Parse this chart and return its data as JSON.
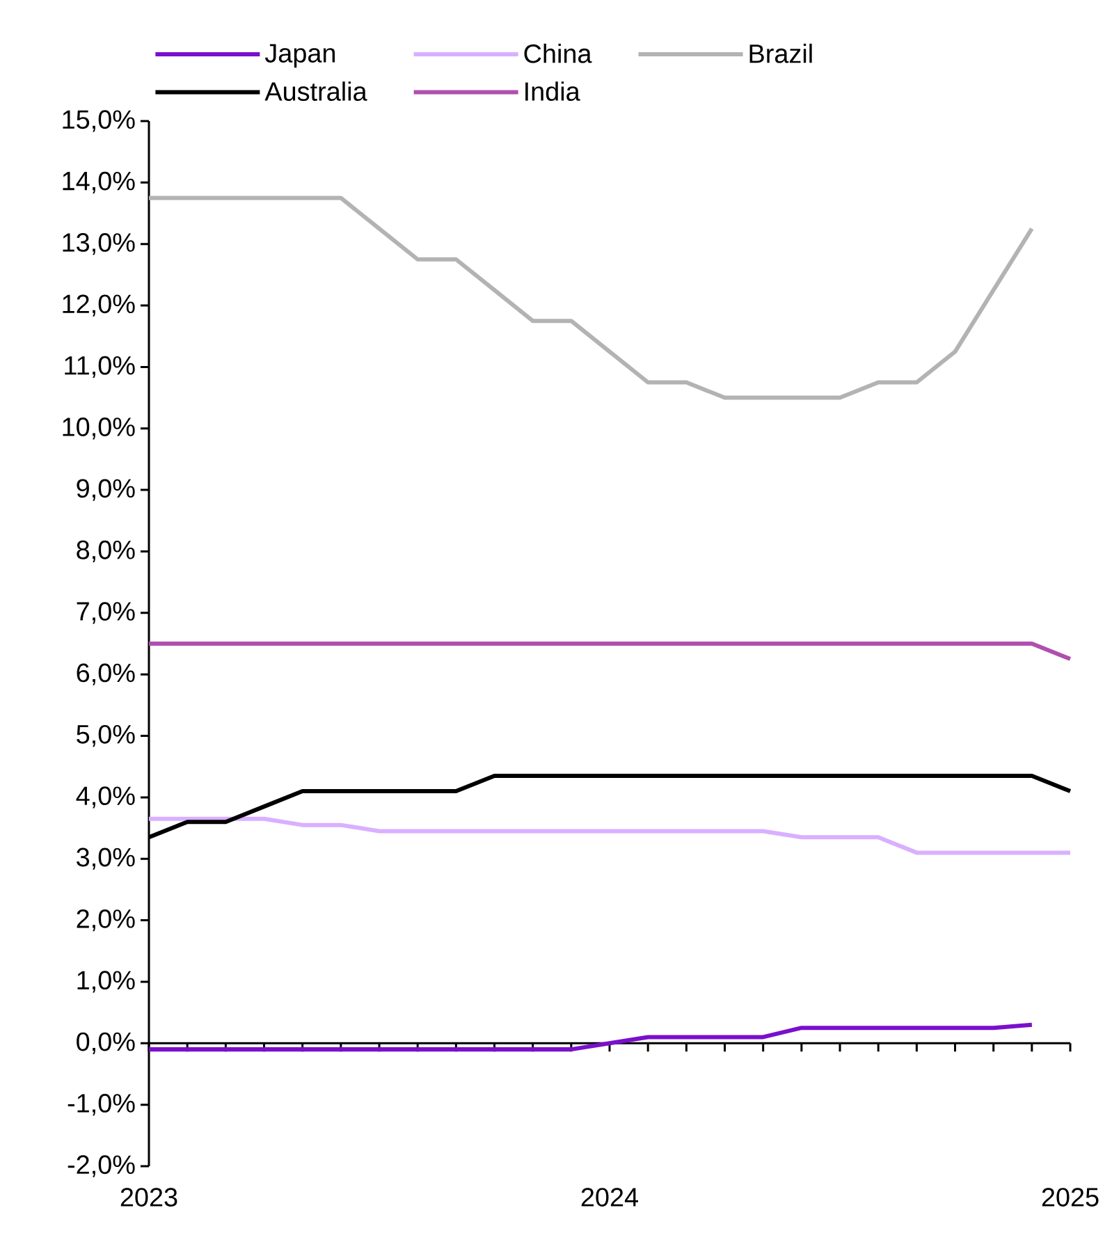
{
  "chart_data": {
    "type": "line",
    "legend": "top",
    "marker": "none",
    "line_style": "solid",
    "x": [
      "2023-01",
      "2023-02",
      "2023-03",
      "2023-04",
      "2023-05",
      "2023-06",
      "2023-07",
      "2023-08",
      "2023-09",
      "2023-10",
      "2023-11",
      "2023-12",
      "2024-01",
      "2024-02",
      "2024-03",
      "2024-04",
      "2024-05",
      "2024-06",
      "2024-07",
      "2024-08",
      "2024-09",
      "2024-10",
      "2024-11",
      "2024-12",
      "2025-01"
    ],
    "series": [
      {
        "name": "Japan",
        "color": "#7a0fcc",
        "values": [
          -0.1,
          -0.1,
          -0.1,
          -0.1,
          -0.1,
          -0.1,
          -0.1,
          -0.1,
          -0.1,
          -0.1,
          -0.1,
          -0.1,
          0,
          0.1,
          0.1,
          0.1,
          0.1,
          0.25,
          0.25,
          0.25,
          0.25,
          0.25,
          0.25,
          0.3,
          null
        ]
      },
      {
        "name": "China",
        "color": "#d9b0ff",
        "values": [
          3.65,
          3.65,
          3.65,
          3.65,
          3.55,
          3.55,
          3.45,
          3.45,
          3.45,
          3.45,
          3.45,
          3.45,
          3.45,
          3.45,
          3.45,
          3.45,
          3.45,
          3.35,
          3.35,
          3.35,
          3.1,
          3.1,
          3.1,
          3.1,
          3.1
        ]
      },
      {
        "name": "Brazil",
        "color": "#b3b3b3",
        "values": [
          13.75,
          13.75,
          13.75,
          13.75,
          13.75,
          13.75,
          13.25,
          12.75,
          12.75,
          12.25,
          11.75,
          11.75,
          11.25,
          10.75,
          10.75,
          10.5,
          10.5,
          10.5,
          10.5,
          10.75,
          10.75,
          11.25,
          12.25,
          13.25,
          null
        ]
      },
      {
        "name": "Australia",
        "color": "#000000",
        "values": [
          3.35,
          3.6,
          3.6,
          3.85,
          4.1,
          4.1,
          4.1,
          4.1,
          4.1,
          4.35,
          4.35,
          4.35,
          4.35,
          4.35,
          4.35,
          4.35,
          4.35,
          4.35,
          4.35,
          4.35,
          4.35,
          4.35,
          4.35,
          4.35,
          4.1
        ]
      },
      {
        "name": "India",
        "color": "#b04fae",
        "values": [
          6.5,
          6.5,
          6.5,
          6.5,
          6.5,
          6.5,
          6.5,
          6.5,
          6.5,
          6.5,
          6.5,
          6.5,
          6.5,
          6.5,
          6.5,
          6.5,
          6.5,
          6.5,
          6.5,
          6.5,
          6.5,
          6.5,
          6.5,
          6.5,
          6.25
        ]
      }
    ],
    "xlim": [
      "2023-01",
      "2025-01"
    ],
    "xticks": [
      {
        "value": "2023-01",
        "label": "2023"
      },
      {
        "value": "2023-02",
        "label": null
      },
      {
        "value": "2023-03",
        "label": null
      },
      {
        "value": "2023-04",
        "label": null
      },
      {
        "value": "2023-05",
        "label": null
      },
      {
        "value": "2023-06",
        "label": null
      },
      {
        "value": "2023-07",
        "label": null
      },
      {
        "value": "2023-08",
        "label": null
      },
      {
        "value": "2023-09",
        "label": null
      },
      {
        "value": "2023-10",
        "label": null
      },
      {
        "value": "2023-11",
        "label": null
      },
      {
        "value": "2023-12",
        "label": null
      },
      {
        "value": "2024-01",
        "label": "2024"
      },
      {
        "value": "2024-02",
        "label": null
      },
      {
        "value": "2024-03",
        "label": null
      },
      {
        "value": "2024-04",
        "label": null
      },
      {
        "value": "2024-05",
        "label": null
      },
      {
        "value": "2024-06",
        "label": null
      },
      {
        "value": "2024-07",
        "label": null
      },
      {
        "value": "2024-08",
        "label": null
      },
      {
        "value": "2024-09",
        "label": null
      },
      {
        "value": "2024-10",
        "label": null
      },
      {
        "value": "2024-11",
        "label": null
      },
      {
        "value": "2024-12",
        "label": null
      },
      {
        "value": "2025-01",
        "label": "2025"
      }
    ],
    "ylim": [
      -2,
      15
    ],
    "yticks": [
      {
        "value": -2,
        "label": "-2,0%"
      },
      {
        "value": -1,
        "label": "-1,0%"
      },
      {
        "value": 0,
        "label": "0,0%"
      },
      {
        "value": 1,
        "label": "1,0%"
      },
      {
        "value": 2,
        "label": "2,0%"
      },
      {
        "value": 3,
        "label": "3,0%"
      },
      {
        "value": 4,
        "label": "4,0%"
      },
      {
        "value": 5,
        "label": "5,0%"
      },
      {
        "value": 6,
        "label": "6,0%"
      },
      {
        "value": 7,
        "label": "7,0%"
      },
      {
        "value": 8,
        "label": "8,0%"
      },
      {
        "value": 9,
        "label": "9,0%"
      },
      {
        "value": 10,
        "label": "10,0%"
      },
      {
        "value": 11,
        "label": "11,0%"
      },
      {
        "value": 12,
        "label": "12,0%"
      },
      {
        "value": 13,
        "label": "13,0%"
      },
      {
        "value": 14,
        "label": "14,0%"
      },
      {
        "value": 15,
        "label": "15,0%"
      }
    ]
  }
}
